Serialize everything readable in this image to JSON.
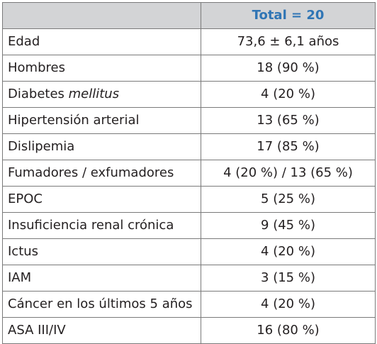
{
  "table": {
    "header": {
      "label": "",
      "value": "Total = 20"
    },
    "rows": [
      {
        "label": "Edad",
        "italic": "",
        "value": "73,6 ± 6,1 años"
      },
      {
        "label": "Hombres",
        "italic": "",
        "value": "18 (90 %)"
      },
      {
        "label": "Diabetes ",
        "italic": "mellitus",
        "value": "4 (20 %)"
      },
      {
        "label": "Hipertensión arterial",
        "italic": "",
        "value": "13 (65 %)"
      },
      {
        "label": "Dislipemia",
        "italic": "",
        "value": "17 (85 %)"
      },
      {
        "label": "Fumadores / exfumadores",
        "italic": "",
        "value": "4 (20 %) / 13 (65 %)"
      },
      {
        "label": "EPOC",
        "italic": "",
        "value": "5 (25 %)"
      },
      {
        "label": "Insuficiencia renal crónica",
        "italic": "",
        "value": "9 (45 %)"
      },
      {
        "label": "Ictus",
        "italic": "",
        "value": "4 (20 %)"
      },
      {
        "label": "IAM",
        "italic": "",
        "value": "3 (15 %)"
      },
      {
        "label": "Cáncer en los últimos 5 años",
        "italic": "",
        "value": "4 (20 %)"
      },
      {
        "label": "ASA III/IV",
        "italic": "",
        "value": "16 (80 %)"
      }
    ]
  },
  "colors": {
    "header_bg": "#d3d4d6",
    "header_text": "#2f75b5",
    "border": "#7a7a7a",
    "text": "#231f20"
  }
}
